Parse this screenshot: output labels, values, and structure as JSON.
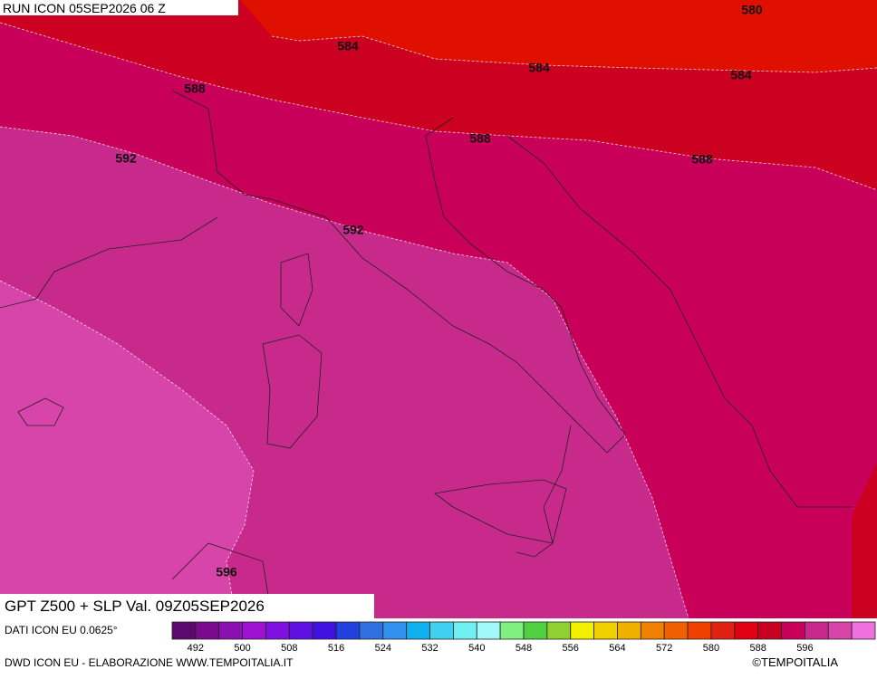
{
  "header": {
    "run": "RUN ICON 05SEP2026 06 Z"
  },
  "contour_labels": [
    580,
    584,
    584,
    584,
    588,
    588,
    588,
    592,
    592,
    596
  ],
  "title": "GPT Z500 + SLP Val. 09Z05SEP2026",
  "source": "DATI ICON EU 0.0625°",
  "colorbar": {
    "colors": [
      "#5a0a6e",
      "#7a0a8e",
      "#8c10b0",
      "#a010d0",
      "#8010e0",
      "#6010e0",
      "#4010e0",
      "#2040e0",
      "#3070e0",
      "#3090f0",
      "#10b0f0",
      "#40d0f0",
      "#70f0f0",
      "#a0f8f8",
      "#80f080",
      "#50d040",
      "#90d030",
      "#f0f000",
      "#f0d000",
      "#f0b000",
      "#f08000",
      "#f06000",
      "#f04000",
      "#e02010",
      "#e00010",
      "#c80020",
      "#c8005a",
      "#c82a8c",
      "#d845aa",
      "#f070e0"
    ],
    "ticks": [
      492,
      500,
      508,
      516,
      524,
      532,
      540,
      548,
      556,
      564,
      572,
      580,
      588,
      596
    ]
  },
  "footer": {
    "left": "DWD ICON EU - ELABORAZIONE WWW.TEMPOITALIA.IT",
    "right": "©TEMPOITALIA"
  }
}
